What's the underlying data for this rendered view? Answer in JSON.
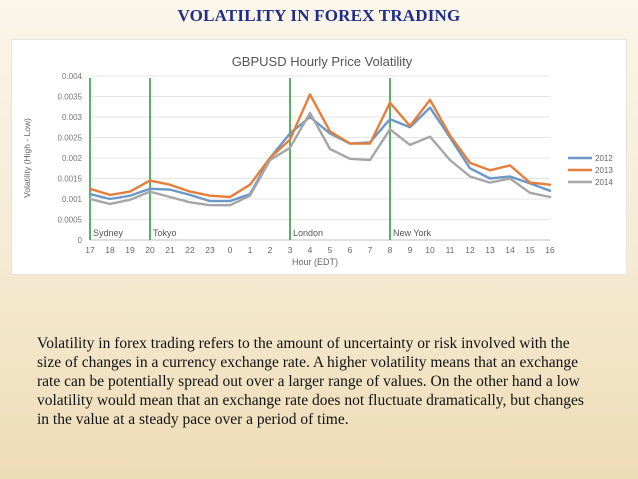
{
  "slide": {
    "title": "VOLATILITY IN FOREX TRADING",
    "body": "Volatility in forex trading refers to the amount of uncertainty or risk involved with the size of changes in a currency exchange rate. A higher volatility means that an exchange rate can be potentially spread out over a larger range of values. On the other hand a low  volatility would mean that an exchange rate does not fluctuate dramatically, but changes in the value at a steady pace over a period of time."
  },
  "chart_data": {
    "type": "line",
    "title": "GBPUSD Hourly Price Volatility",
    "xlabel": "Hour (EDT)",
    "ylabel": "Volatility (High - Low)",
    "categories": [
      "17",
      "18",
      "19",
      "20",
      "21",
      "22",
      "23",
      "0",
      "1",
      "2",
      "3",
      "4",
      "5",
      "6",
      "7",
      "8",
      "9",
      "10",
      "11",
      "12",
      "13",
      "14",
      "15",
      "16"
    ],
    "ylim": [
      0,
      0.004
    ],
    "yticks": [
      "0",
      "0.0005",
      "0.001",
      "0.0015",
      "0.002",
      "0.0025",
      "0.003",
      "0.0035",
      "0.004"
    ],
    "grid": true,
    "legend": "right",
    "series": [
      {
        "name": "2012",
        "color": "#6b98c8",
        "values": [
          0.00112,
          0.001,
          0.00108,
          0.00125,
          0.00123,
          0.0011,
          0.00095,
          0.00095,
          0.00112,
          0.002,
          0.0026,
          0.003,
          0.0026,
          0.00235,
          0.00238,
          0.00295,
          0.00275,
          0.00323,
          0.0025,
          0.00175,
          0.0015,
          0.00155,
          0.00138,
          0.0012
        ]
      },
      {
        "name": "2013",
        "color": "#e67e3b",
        "values": [
          0.00125,
          0.0011,
          0.00118,
          0.00145,
          0.00135,
          0.00118,
          0.00108,
          0.00105,
          0.00135,
          0.002,
          0.00245,
          0.00355,
          0.00265,
          0.00235,
          0.00235,
          0.00335,
          0.00278,
          0.00342,
          0.00255,
          0.00188,
          0.0017,
          0.00182,
          0.0014,
          0.00135
        ]
      },
      {
        "name": "2014",
        "color": "#a6a6a6",
        "values": [
          0.001,
          0.00088,
          0.00098,
          0.00118,
          0.00105,
          0.00092,
          0.00085,
          0.00085,
          0.00108,
          0.00195,
          0.00225,
          0.0031,
          0.00222,
          0.00198,
          0.00195,
          0.0027,
          0.00232,
          0.00252,
          0.00195,
          0.00155,
          0.0014,
          0.0015,
          0.00115,
          0.00105
        ]
      }
    ],
    "sessions": [
      {
        "label": "Sydney",
        "hour": "17"
      },
      {
        "label": "Tokyo",
        "hour": "20"
      },
      {
        "label": "London",
        "hour": "3"
      },
      {
        "label": "New York",
        "hour": "8"
      }
    ],
    "session_line_color": "#2e9e3a"
  }
}
